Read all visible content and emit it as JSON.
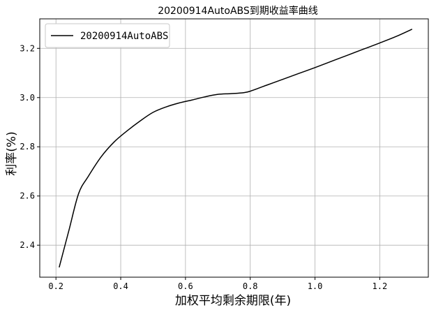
{
  "chart_data": {
    "type": "line",
    "title": "20200914AutoABS到期收益率曲线",
    "xlabel": "加权平均剩余期限(年)",
    "ylabel": "利率(%)",
    "xlim": [
      0.15,
      1.35
    ],
    "ylim": [
      2.27,
      3.32
    ],
    "xticks": [
      0.2,
      0.4,
      0.6,
      0.8,
      1.0,
      1.2
    ],
    "yticks": [
      2.4,
      2.6,
      2.8,
      3.0,
      3.2
    ],
    "xtick_labels": [
      "0.2",
      "0.4",
      "0.6",
      "0.8",
      "1.0",
      "1.2"
    ],
    "ytick_labels": [
      "2.4",
      "2.6",
      "2.8",
      "3.0",
      "3.2"
    ],
    "grid": true,
    "legend_position": "top-left",
    "series": [
      {
        "name": "20200914AutoABS",
        "color": "#000000",
        "x": [
          0.21,
          0.24,
          0.27,
          0.3,
          0.34,
          0.38,
          0.42,
          0.46,
          0.5,
          0.54,
          0.58,
          0.62,
          0.66,
          0.7,
          0.74,
          0.78,
          0.8,
          0.85,
          0.9,
          0.95,
          1.0,
          1.05,
          1.1,
          1.15,
          1.2,
          1.25,
          1.3
        ],
        "y": [
          2.31,
          2.46,
          2.61,
          2.68,
          2.76,
          2.82,
          2.865,
          2.905,
          2.94,
          2.962,
          2.978,
          2.99,
          3.003,
          3.013,
          3.016,
          3.02,
          3.026,
          3.05,
          3.074,
          3.098,
          3.122,
          3.147,
          3.172,
          3.197,
          3.222,
          3.248,
          3.278
        ]
      }
    ]
  }
}
